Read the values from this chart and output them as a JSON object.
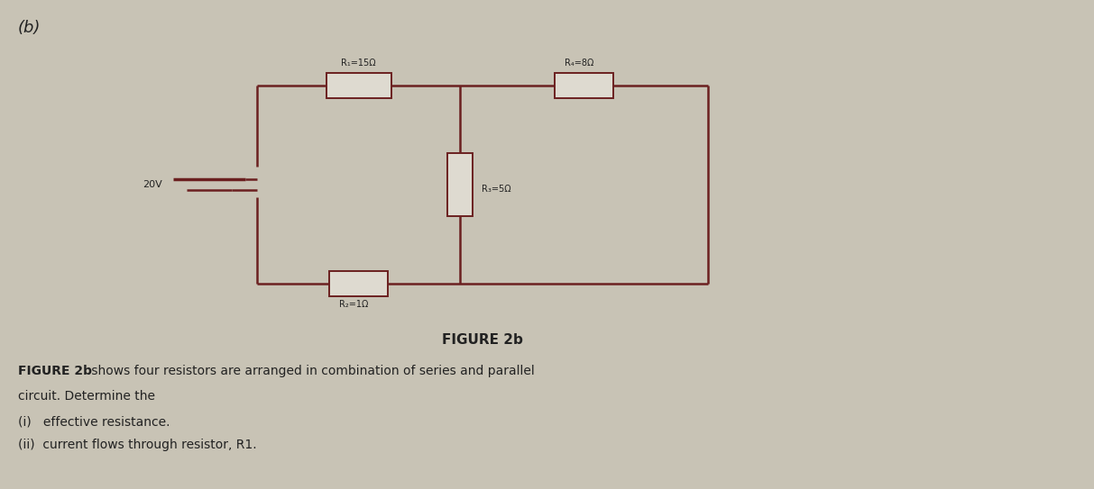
{
  "bg_color": "#c8c3b5",
  "circuit_color": "#6b2020",
  "line_width": 1.8,
  "label_b": "(b)",
  "voltage_label": "20V",
  "r1_label": "R₁=15Ω",
  "r2_label": "R₂=1Ω",
  "r3_label": "R₃=5Ω",
  "r4_label": "R₄=8Ω",
  "figure_label": "FIGURE 2b",
  "desc_bold": "FIGURE 2b",
  "desc_rest": " shows four resistors are arranged in combination of series and parallel",
  "desc_line2": "circuit. Determine the",
  "desc_line3": "(i)   effective resistance.",
  "desc_line4": "(ii)  current flows through resistor, R1.",
  "font_color": "#222222",
  "resistor_fill": "#dedad0",
  "resistor_border": "#6b2020",
  "fig_width": 12.13,
  "fig_height": 5.43
}
